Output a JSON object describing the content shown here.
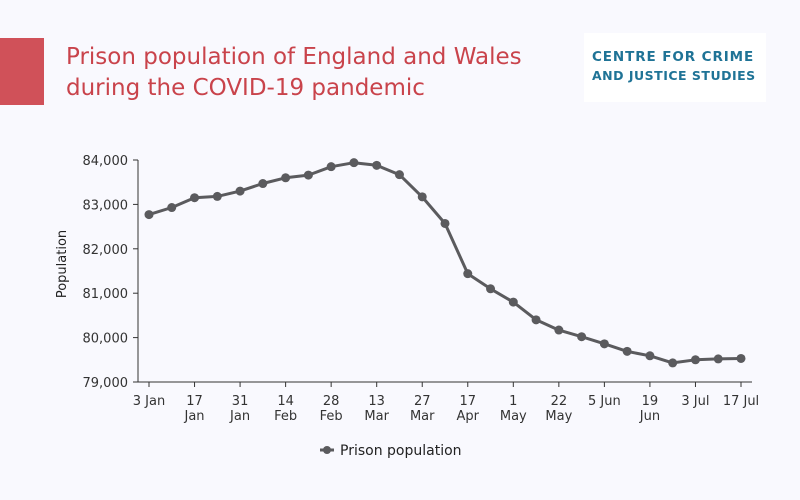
{
  "title_lines": [
    "Prison population of England and Wales",
    "during the COVID-19 pandemic"
  ],
  "logo": {
    "name": "CENTRE FOR CRIME AND JUSTICE STUDIES",
    "line1": "CENTRE FOR CRIME",
    "line2": "AND JUSTICE STUDIES"
  },
  "colors": {
    "accent": "#d05159",
    "title": "#c9434b",
    "logo_text": "#1f7396",
    "series": "#5b5b5e",
    "background": "#f9f9fe"
  },
  "chart_data": {
    "type": "line",
    "title": "Prison population of England and Wales during the COVID-19 pandemic",
    "xlabel": "",
    "ylabel": "Population",
    "ylim": [
      79000,
      84000
    ],
    "yticks": [
      79000,
      80000,
      81000,
      82000,
      83000,
      84000
    ],
    "ytick_labels": [
      "79,000",
      "80,000",
      "81,000",
      "82,000",
      "83,000",
      "84,000"
    ],
    "x_tick_labels": [
      {
        "index": 0,
        "lines": [
          "3 Jan"
        ]
      },
      {
        "index": 2,
        "lines": [
          "17",
          "Jan"
        ]
      },
      {
        "index": 4,
        "lines": [
          "31",
          "Jan"
        ]
      },
      {
        "index": 6,
        "lines": [
          "14",
          "Feb"
        ]
      },
      {
        "index": 8,
        "lines": [
          "28",
          "Feb"
        ]
      },
      {
        "index": 10,
        "lines": [
          "13",
          "Mar"
        ]
      },
      {
        "index": 12,
        "lines": [
          "27",
          "Mar"
        ]
      },
      {
        "index": 14,
        "lines": [
          "17",
          "Apr"
        ]
      },
      {
        "index": 16,
        "lines": [
          "1",
          "May"
        ]
      },
      {
        "index": 18,
        "lines": [
          "22",
          "May"
        ]
      },
      {
        "index": 20,
        "lines": [
          "5 Jun"
        ]
      },
      {
        "index": 22,
        "lines": [
          "19",
          "Jun"
        ]
      },
      {
        "index": 24,
        "lines": [
          "3 Jul"
        ]
      },
      {
        "index": 26,
        "lines": [
          "17 Jul"
        ]
      }
    ],
    "grid": false,
    "legend_position": "bottom-center",
    "series": [
      {
        "name": "Prison population",
        "values": [
          82770,
          82930,
          83150,
          83180,
          83300,
          83470,
          83600,
          83660,
          83850,
          83940,
          83880,
          83670,
          83170,
          82570,
          81440,
          81100,
          80800,
          80400,
          80170,
          80020,
          79860,
          79690,
          79590,
          79430,
          79500,
          79520,
          79530
        ]
      }
    ]
  }
}
